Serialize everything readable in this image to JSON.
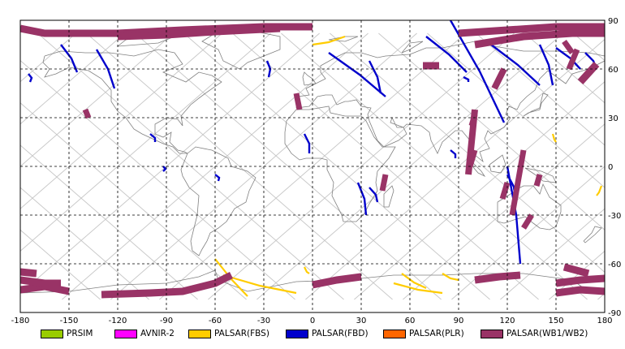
{
  "map": {
    "x_ticks": [
      -180,
      -150,
      -120,
      -90,
      -60,
      -30,
      0,
      30,
      60,
      90,
      120,
      150,
      180
    ],
    "y_ticks": [
      90,
      60,
      30,
      0,
      -30,
      -60,
      -90
    ],
    "x_range": [
      -180,
      180
    ],
    "y_range": [
      -90,
      90
    ]
  },
  "legend": {
    "items": [
      {
        "label": "PRSIM",
        "color": "#99cc00"
      },
      {
        "label": "AVNIR-2",
        "color": "#ff00ff"
      },
      {
        "label": "PALSAR(FBS)",
        "color": "#ffcc00"
      },
      {
        "label": "PALSAR(FBD)",
        "color": "#0000cc"
      },
      {
        "label": "PALSAR(PLR)",
        "color": "#ff6600"
      },
      {
        "label": "PALSAR(WB1/WB2)",
        "color": "#993366"
      }
    ]
  },
  "colors": {
    "grid": "#000000",
    "orbit": "#c8c8c8",
    "coast": "#808080",
    "frame": "#000000"
  }
}
